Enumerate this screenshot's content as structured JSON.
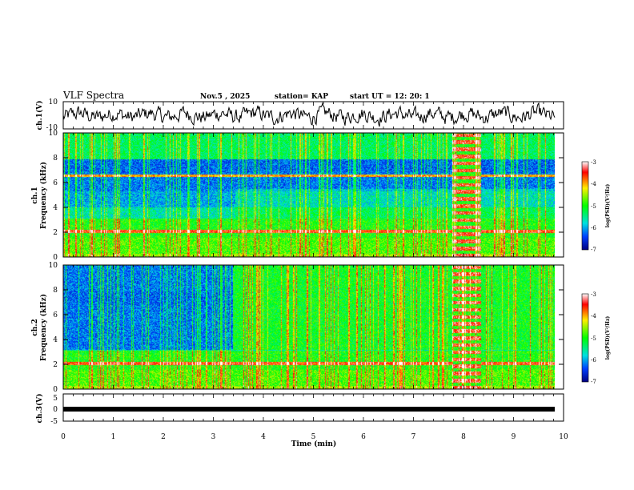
{
  "header": {
    "title": "VLF Spectra",
    "date": "Nov.5 , 2025",
    "station": "station= KAP",
    "start": "start UT = 12: 20: 1"
  },
  "chart_data": [
    {
      "type": "line",
      "name": "ch1-waveform",
      "ylabel": "ch.1(V)",
      "ylim": [
        -10,
        10
      ],
      "yticks": [
        "10",
        "-10"
      ],
      "xlim": [
        0,
        10
      ]
    },
    {
      "type": "heatmap",
      "name": "ch1-spectrogram",
      "ylabel_line1": "ch.1",
      "ylabel_line2": "Frequency (kHz)",
      "ylim": [
        0,
        10
      ],
      "yticks": [
        "0",
        "2",
        "4",
        "6",
        "8",
        "10"
      ],
      "xlim": [
        0,
        10
      ],
      "colorbar": {
        "range": [
          -7,
          -3
        ],
        "ticks": [
          "-3",
          "-4",
          "-5",
          "-6",
          "-7"
        ],
        "label": "log(PSD)(V²/Hz)"
      }
    },
    {
      "type": "heatmap",
      "name": "ch2-spectrogram",
      "ylabel_line1": "ch.2",
      "ylabel_line2": "Frequency (kHz)",
      "ylim": [
        0,
        10
      ],
      "yticks": [
        "0",
        "2",
        "4",
        "6",
        "8",
        "10"
      ],
      "xlim": [
        0,
        10
      ],
      "colorbar": {
        "range": [
          -7,
          -3
        ],
        "ticks": [
          "-3",
          "-4",
          "-5",
          "-6",
          "-7"
        ],
        "label": "log(PSD)(V²/Hz)"
      }
    },
    {
      "type": "line",
      "name": "ch3-trace",
      "ylabel": "ch.3(V)",
      "ylim": [
        -5,
        5
      ],
      "yticks": [
        "5",
        "0",
        "-5"
      ],
      "xlim": [
        0,
        10
      ],
      "xticks": [
        "0",
        "1",
        "2",
        "3",
        "4",
        "5",
        "6",
        "7",
        "8",
        "9",
        "10"
      ],
      "xlabel": "Time (min)"
    }
  ]
}
